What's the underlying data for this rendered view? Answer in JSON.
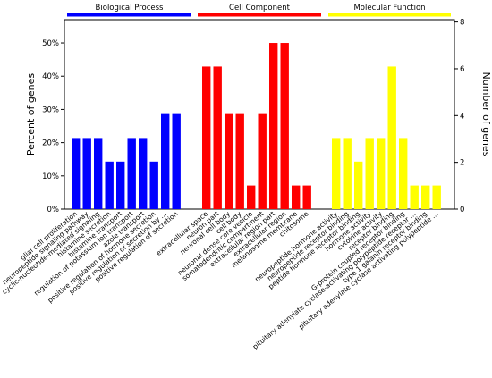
{
  "chart_data": {
    "type": "bar",
    "ylabel": "Percent of genes",
    "y2label": "Number of genes",
    "yticks": [
      "0%",
      "10%",
      "20%",
      "30%",
      "40%",
      "50%"
    ],
    "y2ticks": [
      "0",
      "2",
      "4",
      "6",
      "8"
    ],
    "ylim": [
      0,
      57
    ],
    "y2lim": [
      0,
      8.1
    ],
    "grid": false,
    "groups": [
      {
        "name": "Biological Process",
        "color": "#0000ff",
        "categories": [
          "glial cell proliferation",
          "neuropeptide signaling pathway",
          "cyclic-nucleotide-mediated signaling",
          "histamine secretion",
          "histamine transport",
          "regulation of potassium ion transport",
          "azole transport",
          "positive regulation of hormone secretion",
          "positive regulation of secretion by ...",
          "positive regulation of secretion"
        ],
        "values": [
          21.4,
          21.4,
          21.4,
          14.3,
          14.3,
          21.4,
          21.4,
          14.3,
          28.6,
          28.6
        ],
        "counts": [
          3,
          3,
          3,
          2,
          2,
          3,
          3,
          2,
          4,
          4
        ]
      },
      {
        "name": "Cell Component",
        "color": "#ff0000",
        "categories": [
          "extracellular space",
          "neuron part",
          "neuronal cell body",
          "cell body",
          "neuronal dense core vesicle",
          "somatodendritic compartment",
          "extracellular region part",
          "extracellular region",
          "melanosome membrane",
          "chitosome"
        ],
        "values": [
          42.9,
          42.9,
          28.6,
          28.6,
          7.1,
          28.6,
          50.0,
          50.0,
          7.1,
          7.1
        ],
        "counts": [
          6,
          6,
          4,
          4,
          1,
          4,
          7,
          7,
          1,
          1
        ]
      },
      {
        "name": "Molecular Function",
        "color": "#ffff00",
        "categories": [
          "neuropeptide hormone activity",
          "neuropeptide receptor binding",
          "peptide hormone receptor binding",
          "hormone activity",
          "cytokine activity",
          "receptor binding",
          "G-protein coupled receptor binding",
          "pituitary adenylate cyclase-activating polypeptide receptor ...",
          "type 1 galanin receptor binding",
          "pituitary adenylate cyclase activating polypeptide ..."
        ],
        "values": [
          21.4,
          21.4,
          14.3,
          21.4,
          21.4,
          42.9,
          21.4,
          7.1,
          7.1,
          7.1
        ],
        "counts": [
          3,
          3,
          2,
          3,
          3,
          6,
          3,
          1,
          1,
          1
        ]
      }
    ]
  }
}
